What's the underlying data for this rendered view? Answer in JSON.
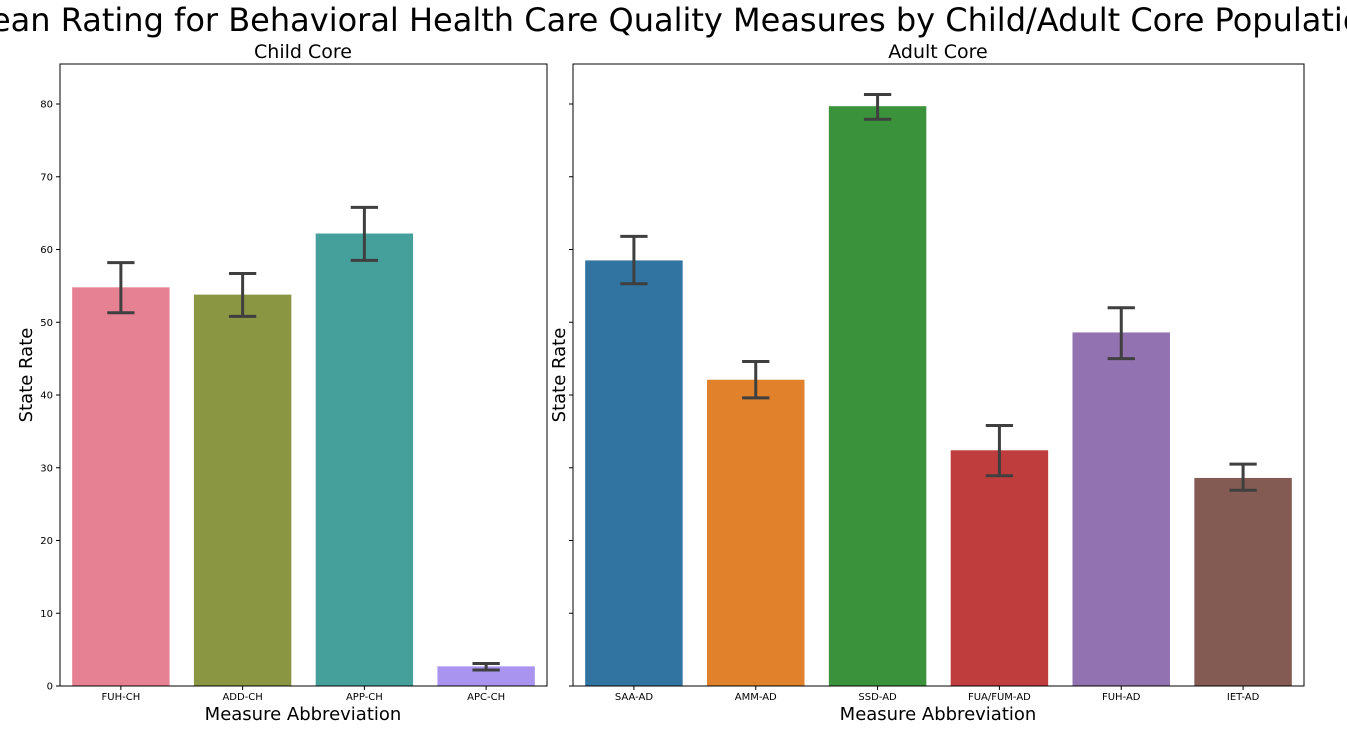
{
  "title": "Mean Rating for Behavioral Health Care Quality Measures by Child/Adult Core Population",
  "chart_data": [
    {
      "type": "bar",
      "title": "Child Core",
      "xlabel": "Measure Abbreviation",
      "ylabel": "State Rate",
      "ylim": [
        0,
        85.5
      ],
      "yticks": [
        0,
        10,
        20,
        30,
        40,
        50,
        60,
        70,
        80
      ],
      "categories": [
        "FUH-CH",
        "ADD-CH",
        "APP-CH",
        "APC-CH"
      ],
      "values": [
        54.8,
        53.8,
        62.2,
        2.7
      ],
      "err_low": [
        51.3,
        50.8,
        58.5,
        2.2
      ],
      "err_high": [
        58.2,
        56.7,
        65.8,
        3.1
      ],
      "colors": [
        "#e68193",
        "#8a9641",
        "#45a09b",
        "#a994f0"
      ]
    },
    {
      "type": "bar",
      "title": "Adult Core",
      "xlabel": "Measure Abbreviation",
      "ylabel": "State Rate",
      "ylim": [
        0,
        85.5
      ],
      "yticks": [
        0,
        10,
        20,
        30,
        40,
        50,
        60,
        70,
        80
      ],
      "categories": [
        "SAA-AD",
        "AMM-AD",
        "SSD-AD",
        "FUA/FUM-AD",
        "FUH-AD",
        "IET-AD"
      ],
      "values": [
        58.5,
        42.1,
        79.7,
        32.4,
        48.6,
        28.6
      ],
      "err_low": [
        55.3,
        39.6,
        77.9,
        28.9,
        45.0,
        26.9
      ],
      "err_high": [
        61.8,
        44.6,
        81.3,
        35.8,
        52.0,
        30.5
      ],
      "colors": [
        "#3274a1",
        "#e1812c",
        "#3a923a",
        "#c03d3e",
        "#9372b2",
        "#845b53"
      ]
    }
  ]
}
